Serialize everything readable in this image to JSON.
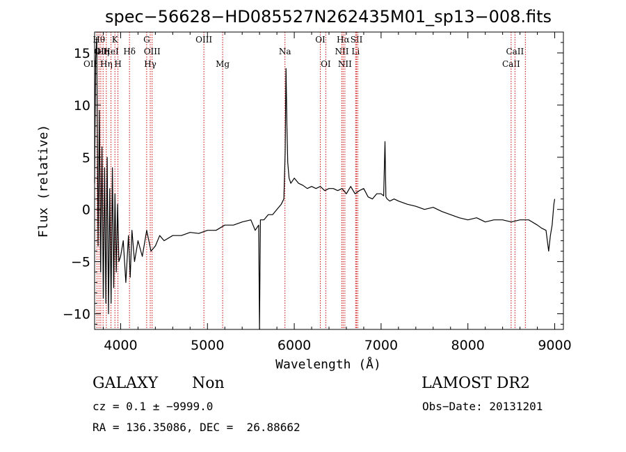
{
  "chart_data": {
    "type": "line",
    "title": "spec−56628−HD085527N262435M01_sp13−008.fits",
    "xlabel": "Wavelength (Å)",
    "ylabel": "Flux (relative)",
    "xlim": [
      3700,
      9100
    ],
    "ylim": [
      -11.5,
      17
    ],
    "xticks": [
      4000,
      5000,
      6000,
      7000,
      8000,
      9000
    ],
    "yticks": [
      -10,
      -5,
      0,
      5,
      10,
      15
    ],
    "ytick_labels": [
      "−10",
      "−5",
      "0",
      "5",
      "10",
      "15"
    ],
    "grid": false,
    "line_color": "#000000",
    "marker_color": "#cc0000",
    "series": [
      {
        "x": [
          3700,
          3712,
          3725,
          3740,
          3755,
          3770,
          3785,
          3800,
          3815,
          3830,
          3845,
          3860,
          3875,
          3890,
          3905,
          3920,
          3935,
          3950,
          3965,
          3980,
          4000,
          4030,
          4060,
          4090,
          4110,
          4130,
          4160,
          4200,
          4250,
          4300,
          4350,
          4400,
          4450,
          4500,
          4600,
          4700,
          4800,
          4900,
          5000,
          5100,
          5200,
          5300,
          5400,
          5500,
          5550,
          5590,
          5600,
          5610,
          5650,
          5700,
          5750,
          5800,
          5850,
          5880,
          5895,
          5905,
          5915,
          5925,
          5940,
          5960,
          6000,
          6050,
          6100,
          6150,
          6200,
          6250,
          6300,
          6350,
          6400,
          6450,
          6500,
          6550,
          6600,
          6650,
          6700,
          6750,
          6800,
          6850,
          6900,
          6950,
          7000,
          7030,
          7045,
          7055,
          7070,
          7100,
          7150,
          7200,
          7300,
          7400,
          7500,
          7600,
          7700,
          7800,
          7900,
          8000,
          8100,
          8200,
          8300,
          8400,
          8500,
          8600,
          8700,
          8800,
          8850,
          8900,
          8930,
          8950,
          8970,
          8990,
          9000
        ],
        "y": [
          2.5,
          14.5,
          16.5,
          -3.5,
          9.5,
          -6.0,
          6.0,
          -8.5,
          4.0,
          -9.0,
          5.0,
          -10.0,
          2.0,
          -9.0,
          4.0,
          -7.5,
          1.5,
          -6.0,
          0.5,
          -5.0,
          -4.5,
          -3.0,
          -7.0,
          -2.5,
          -6.5,
          -2.0,
          -5.0,
          -3.0,
          -4.5,
          -2.0,
          -4.0,
          -3.5,
          -2.5,
          -3.0,
          -2.5,
          -2.5,
          -2.2,
          -2.3,
          -2.0,
          -2.0,
          -1.5,
          -1.5,
          -1.2,
          -1.0,
          -2.0,
          -1.5,
          -11.5,
          -1.0,
          -1.0,
          -0.5,
          -0.5,
          0.0,
          0.5,
          1.0,
          5.5,
          13.5,
          8.0,
          4.5,
          3.0,
          2.5,
          3.0,
          2.5,
          2.3,
          2.0,
          2.2,
          2.0,
          2.2,
          1.8,
          2.0,
          2.0,
          1.8,
          2.0,
          1.5,
          2.2,
          1.5,
          1.8,
          2.0,
          1.2,
          1.0,
          1.5,
          1.5,
          1.3,
          6.5,
          1.2,
          1.0,
          0.8,
          1.0,
          0.8,
          0.5,
          0.3,
          0.0,
          0.2,
          -0.2,
          -0.5,
          -0.8,
          -1.0,
          -0.8,
          -1.2,
          -1.0,
          -1.0,
          -1.2,
          -1.0,
          -1.0,
          -1.5,
          -1.8,
          -2.0,
          -4.0,
          -2.5,
          -1.5,
          0.5,
          1.0
        ]
      }
    ],
    "line_markers": [
      {
        "x": 3727,
        "row": 2,
        "label": "OII",
        "ha": "end"
      },
      {
        "x": 3750,
        "row": 0,
        "label": "Hθ",
        "ha": "middle"
      },
      {
        "x": 3771,
        "row": 1,
        "label": "OII",
        "ha": "middle"
      },
      {
        "x": 3798,
        "row": 1,
        "label": "Hη",
        "ha": "middle"
      },
      {
        "x": 3835,
        "row": 2,
        "label": "Hη",
        "ha": "middle"
      },
      {
        "x": 3889,
        "row": 1,
        "label": "HeI",
        "ha": "middle"
      },
      {
        "x": 3934,
        "row": 0,
        "label": "K",
        "ha": "middle"
      },
      {
        "x": 3969,
        "row": 2,
        "label": "H",
        "ha": "middle"
      },
      {
        "x": 4102,
        "row": 1,
        "label": "Hδ",
        "ha": "middle"
      },
      {
        "x": 4300,
        "row": 0,
        "label": "G",
        "ha": "middle"
      },
      {
        "x": 4341,
        "row": 2,
        "label": "Hγ",
        "ha": "middle"
      },
      {
        "x": 4363,
        "row": 1,
        "label": "OIII",
        "ha": "middle"
      },
      {
        "x": 4959,
        "row": 0,
        "label": "OIII",
        "ha": "middle"
      },
      {
        "x": 5175,
        "row": 2,
        "label": "Mg",
        "ha": "middle"
      },
      {
        "x": 5893,
        "row": 1,
        "label": "Na",
        "ha": "middle"
      },
      {
        "x": 6300,
        "row": 0,
        "label": "OI",
        "ha": "middle"
      },
      {
        "x": 6363,
        "row": 2,
        "label": "OI",
        "ha": "middle"
      },
      {
        "x": 6548,
        "row": 1,
        "label": "NII",
        "ha": "middle"
      },
      {
        "x": 6563,
        "row": 0,
        "label": "Hα",
        "ha": "middle"
      },
      {
        "x": 6583,
        "row": 2,
        "label": "NII",
        "ha": "middle"
      },
      {
        "x": 6707,
        "row": 1,
        "label": "Li",
        "ha": "middle"
      },
      {
        "x": 6717,
        "row": 0,
        "label": "SII",
        "ha": "middle"
      },
      {
        "x": 6731,
        "row": 0,
        "label": "",
        "ha": "middle"
      },
      {
        "x": 8498,
        "row": 2,
        "label": "CaII",
        "ha": "middle"
      },
      {
        "x": 8542,
        "row": 1,
        "label": "CaII",
        "ha": "middle"
      },
      {
        "x": 8662,
        "row": 0,
        "label": "",
        "ha": "middle"
      }
    ]
  },
  "info": {
    "class_label": "GALAXY",
    "subclass_label": "Non",
    "survey_label": "LAMOST DR2",
    "cz_text": "cz = 0.1 ± −9999.0",
    "obs_date_text": "Obs−Date: 20131201",
    "coords_text": "RA = 136.35086, DEC =  26.88662"
  }
}
